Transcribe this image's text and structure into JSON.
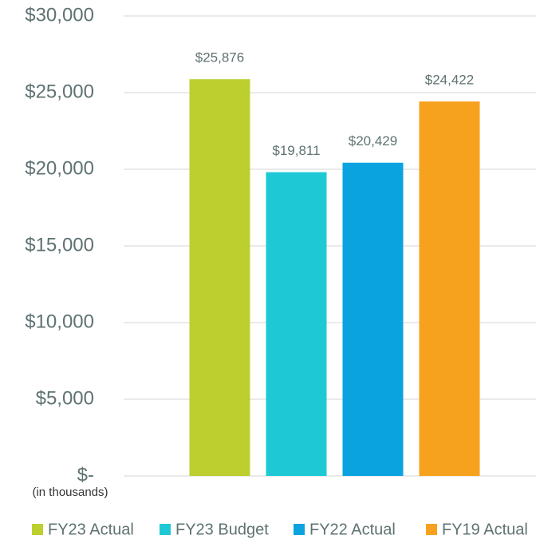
{
  "chart_data": {
    "type": "bar",
    "y_axis_label": "(in thousands)",
    "categories": [
      null
    ],
    "series": [
      {
        "name": "FY23 Actual",
        "color": "#bccf2f",
        "values": [
          25876
        ],
        "value_labels": [
          "$25,876"
        ]
      },
      {
        "name": "FY23 Budget",
        "color": "#1ec9d5",
        "values": [
          19811
        ],
        "value_labels": [
          "$19,811"
        ]
      },
      {
        "name": "FY22 Actual",
        "color": "#0aa3e0",
        "values": [
          20429
        ],
        "value_labels": [
          "$20,429"
        ]
      },
      {
        "name": "FY19 Actual",
        "color": "#f7a21f",
        "values": [
          24422
        ],
        "value_labels": [
          "$24,422"
        ]
      }
    ],
    "ylim": [
      0,
      30000
    ],
    "yticks": [
      {
        "value": 0,
        "label": "$-"
      },
      {
        "value": 5000,
        "label": "$5,000"
      },
      {
        "value": 10000,
        "label": "$10,000"
      },
      {
        "value": 15000,
        "label": "$15,000"
      },
      {
        "value": 20000,
        "label": "$20,000"
      },
      {
        "value": 25000,
        "label": "$25,000"
      },
      {
        "value": 30000,
        "label": "$30,000"
      }
    ],
    "grid": true,
    "legend": "bottom"
  }
}
